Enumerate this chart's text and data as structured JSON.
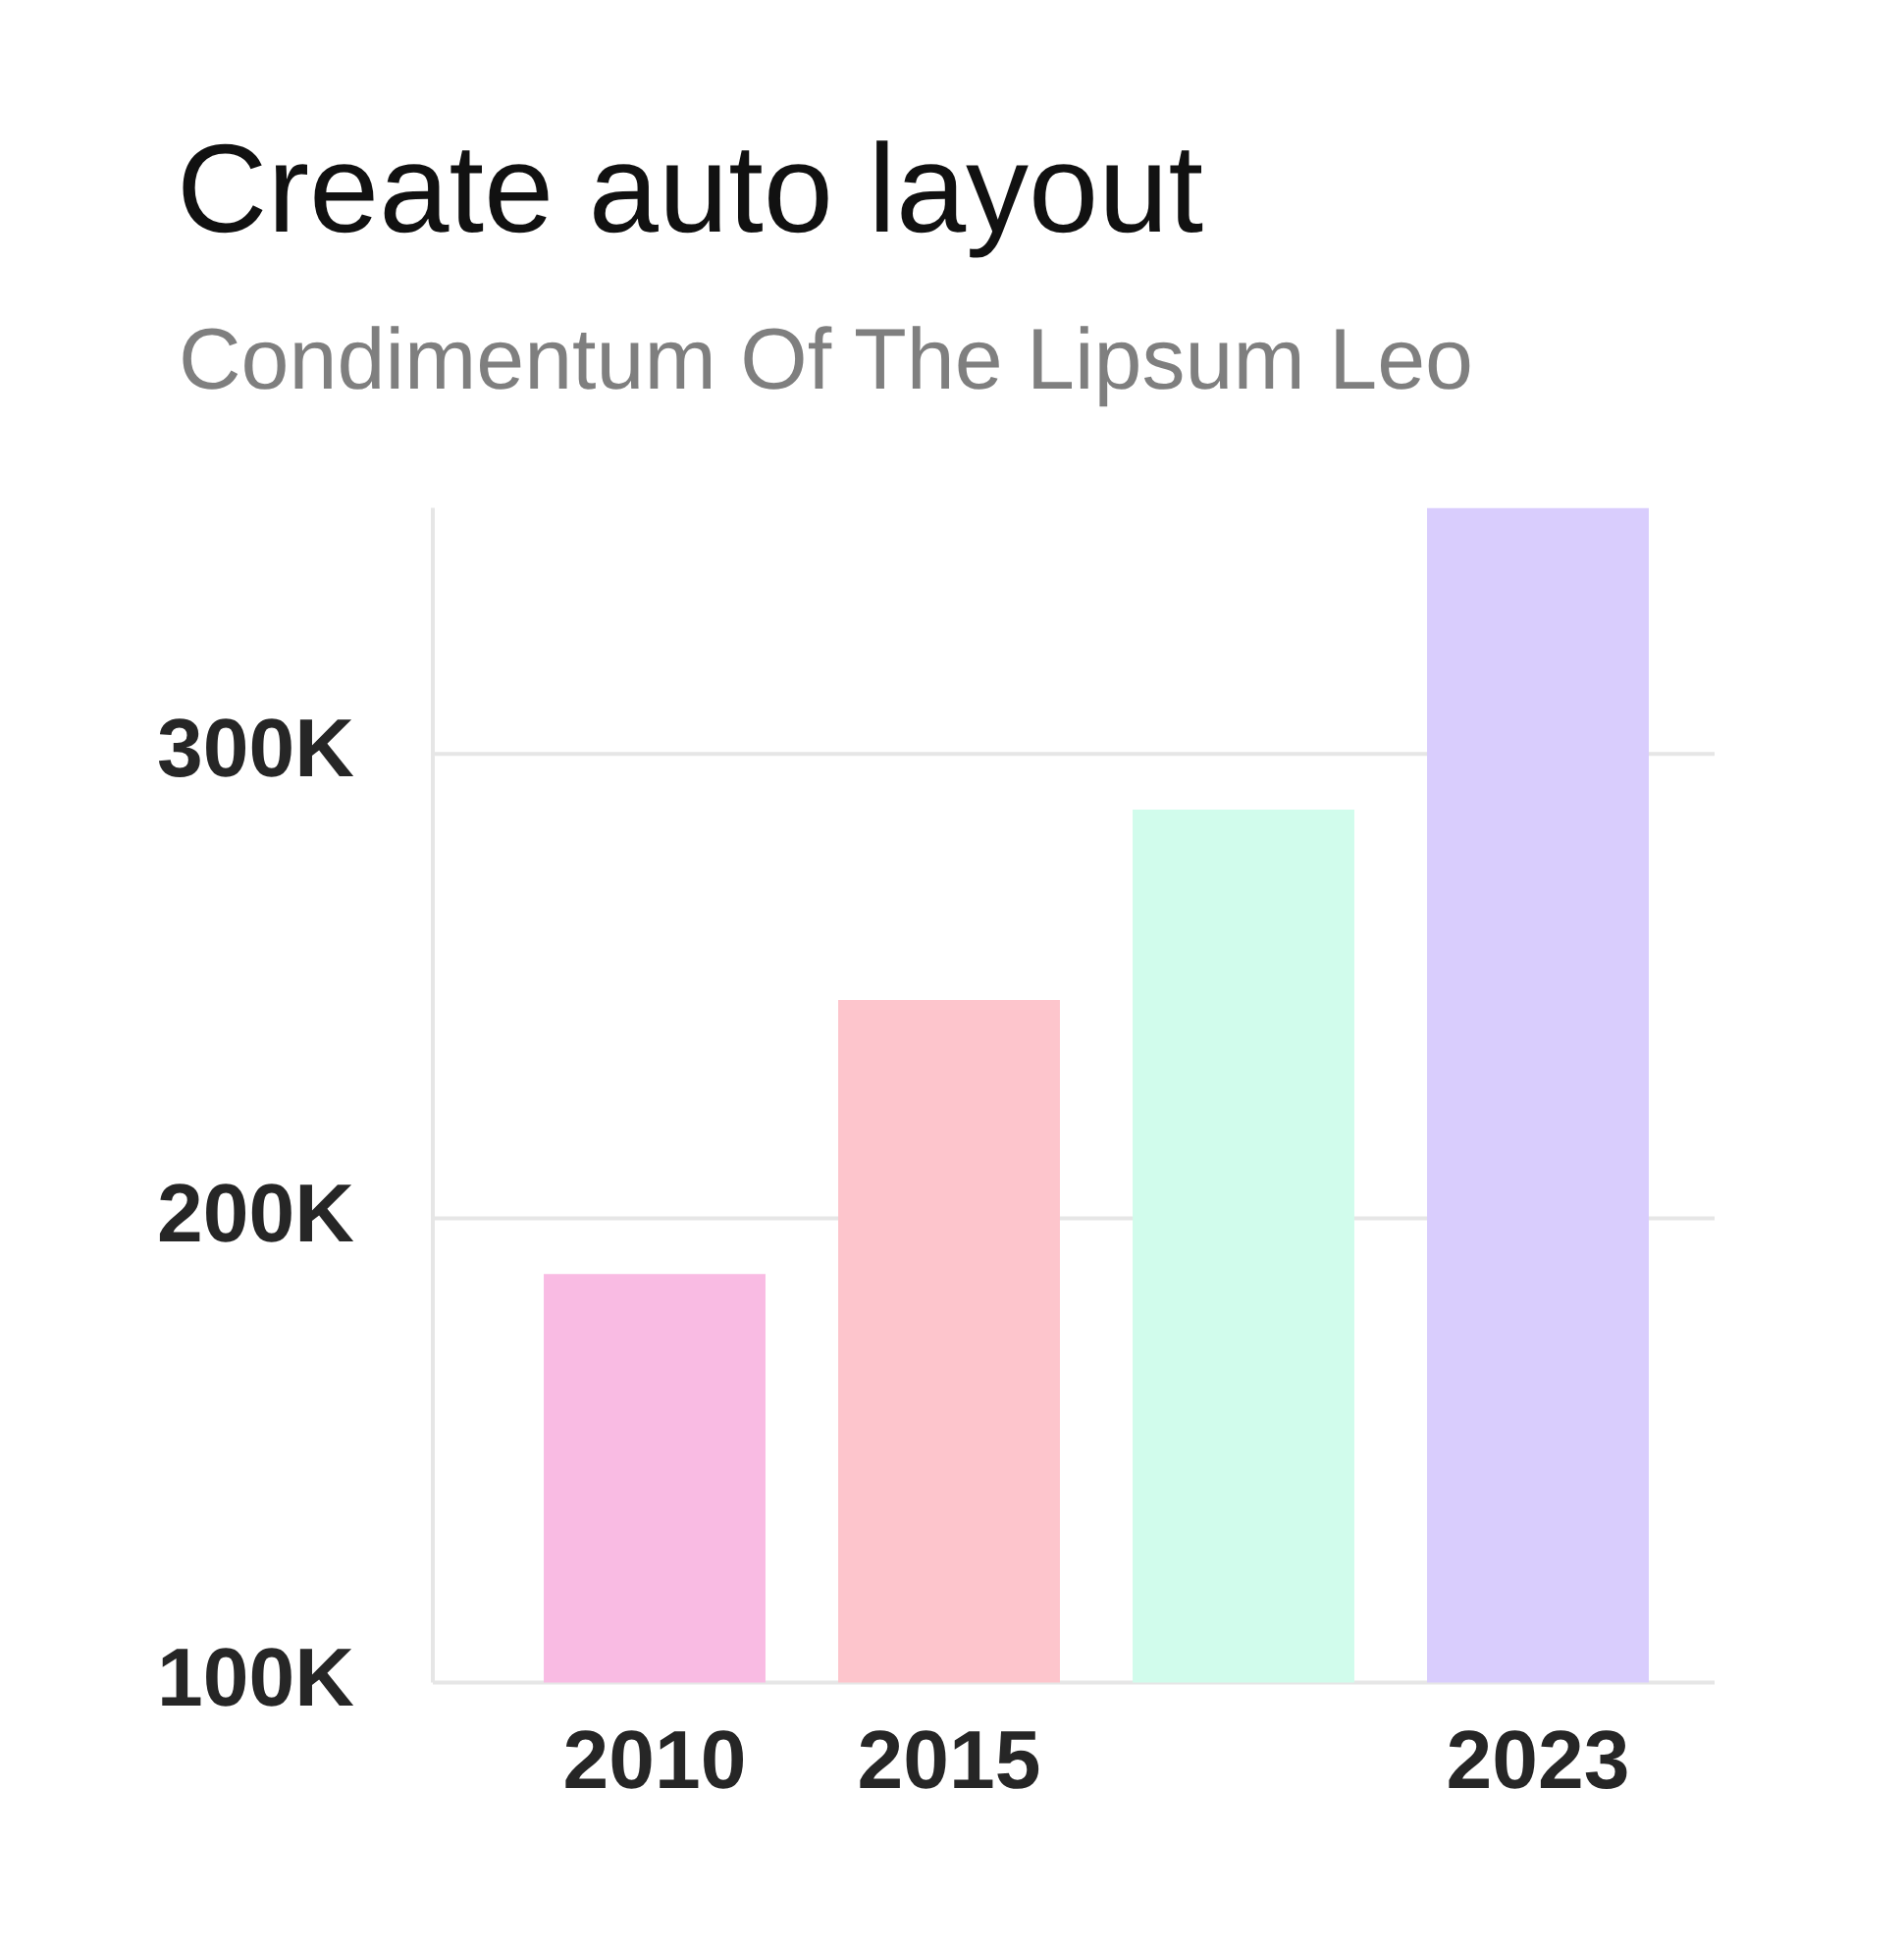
{
  "chart_data": {
    "type": "bar",
    "title": "Create auto layout",
    "subtitle": "Condimentum Of The Lipsum Leo",
    "categories": [
      "2010",
      "2015",
      null,
      "2023"
    ],
    "values": [
      188000,
      247000,
      288000,
      353000
    ],
    "colors": [
      "#f9bbe3",
      "#fdc5cc",
      "#d1fcec",
      "#d9cdfd"
    ],
    "ylim": [
      100000,
      353000
    ],
    "yticks": [
      {
        "value": 100000,
        "label": "100K"
      },
      {
        "value": 200000,
        "label": "200K"
      },
      {
        "value": 300000,
        "label": "300K"
      }
    ],
    "grid": "y"
  }
}
